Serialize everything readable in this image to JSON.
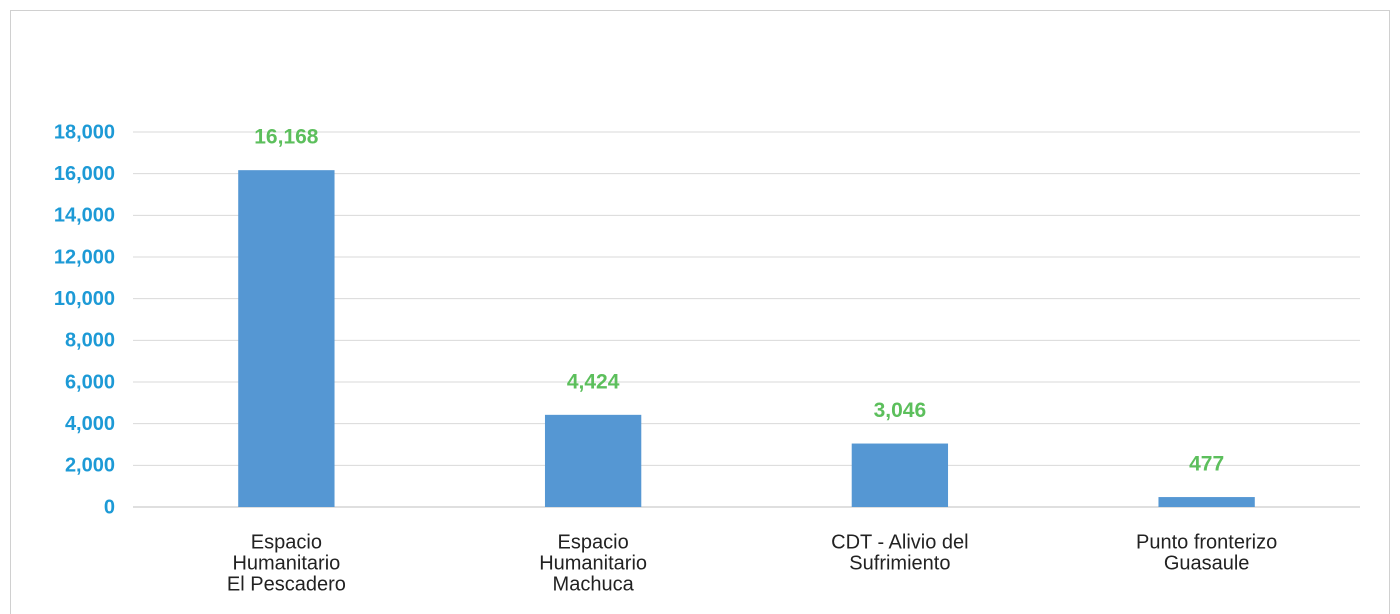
{
  "chart_data": {
    "type": "bar",
    "categories": [
      [
        "Espacio",
        "Humanitario",
        "El Pescadero"
      ],
      [
        "Espacio",
        "Humanitario",
        "Machuca"
      ],
      [
        "CDT - Alivio del",
        "Sufrimiento"
      ],
      [
        "Punto fronterizo",
        "Guasaule"
      ]
    ],
    "values": [
      16168,
      4424,
      3046,
      477
    ],
    "value_labels": [
      "16,168",
      "4,424",
      "3,046",
      "477"
    ],
    "color": "#5597d3",
    "value_label_color": "#5cbf5c",
    "ylim": [
      0,
      18000
    ],
    "yticks": [
      0,
      {
        "value": 2000,
        "label": "2,000"
      },
      {
        "value": 4000,
        "label": "4,000"
      },
      {
        "value": 6000,
        "label": "6,000"
      },
      {
        "value": 8000,
        "label": "8,000"
      },
      {
        "value": 10000,
        "label": "10,000"
      },
      {
        "value": 12000,
        "label": "12,000"
      },
      {
        "value": 14000,
        "label": "14,000"
      },
      {
        "value": 16000,
        "label": "16,000"
      },
      {
        "value": 18000,
        "label": "18,000"
      }
    ],
    "grid": true
  }
}
